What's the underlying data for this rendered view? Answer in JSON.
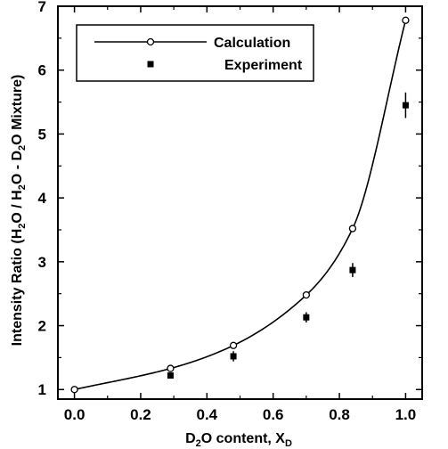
{
  "chart_data": {
    "type": "line",
    "xlabel": {
      "parts": [
        {
          "t": "D"
        },
        {
          "t": "2",
          "sub": true
        },
        {
          "t": "O content, X"
        },
        {
          "t": "D",
          "sub": true
        }
      ]
    },
    "ylabel": {
      "parts": [
        {
          "t": "Intensity Ratio (H"
        },
        {
          "t": "2",
          "sub": true
        },
        {
          "t": "O / H"
        },
        {
          "t": "2",
          "sub": true
        },
        {
          "t": "O - D"
        },
        {
          "t": "2",
          "sub": true
        },
        {
          "t": "O Mixture)"
        }
      ]
    },
    "xlim": [
      -0.05,
      1.05
    ],
    "ylim": [
      0.85,
      7.0
    ],
    "xticks": [
      "0.0",
      "0.2",
      "0.4",
      "0.6",
      "0.8",
      "1.0"
    ],
    "yticks": [
      "1",
      "2",
      "3",
      "4",
      "5",
      "6",
      "7"
    ],
    "legend": {
      "position": "top-left",
      "entries": [
        "Calculation",
        "Experiment"
      ]
    },
    "series": [
      {
        "name": "Calculation",
        "marker": "open-circle",
        "x": [
          0.0,
          0.29,
          0.48,
          0.7,
          0.84,
          1.0
        ],
        "y": [
          1.0,
          1.33,
          1.69,
          2.48,
          3.52,
          6.78
        ]
      },
      {
        "name": "Experiment",
        "marker": "filled-square",
        "x": [
          0.29,
          0.48,
          0.7,
          0.84,
          1.0
        ],
        "y": [
          1.22,
          1.52,
          2.13,
          2.87,
          5.45
        ],
        "yerr": [
          0.04,
          0.08,
          0.08,
          0.11,
          0.2
        ]
      }
    ]
  }
}
